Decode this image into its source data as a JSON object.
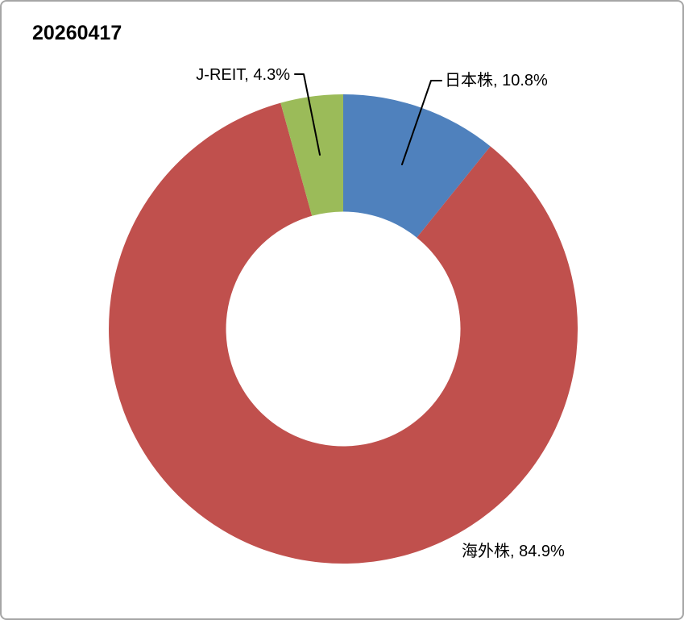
{
  "chart_data": {
    "type": "pie",
    "subtype": "donut",
    "title": "20260417",
    "unit": "%",
    "categories": [
      "日本株",
      "海外株",
      "J-REIT"
    ],
    "values": [
      10.8,
      84.9,
      4.3
    ],
    "colors": [
      "#4F81BD",
      "#C0504D",
      "#9BBB59"
    ],
    "start_angle_deg": 0,
    "direction": "clockwise",
    "donut_hole_ratio": 0.5,
    "legend": "none",
    "background_color": "#ffffff",
    "frame_border_color": "#a6a6a6",
    "leader_line_color": "#000000",
    "data_labels": [
      {
        "text": "日本株, 10.8%",
        "placement": "outside-top-right"
      },
      {
        "text": "海外株, 84.9%",
        "placement": "outside-bottom-right"
      },
      {
        "text": "J-REIT, 4.3%",
        "placement": "outside-top-left"
      }
    ]
  }
}
